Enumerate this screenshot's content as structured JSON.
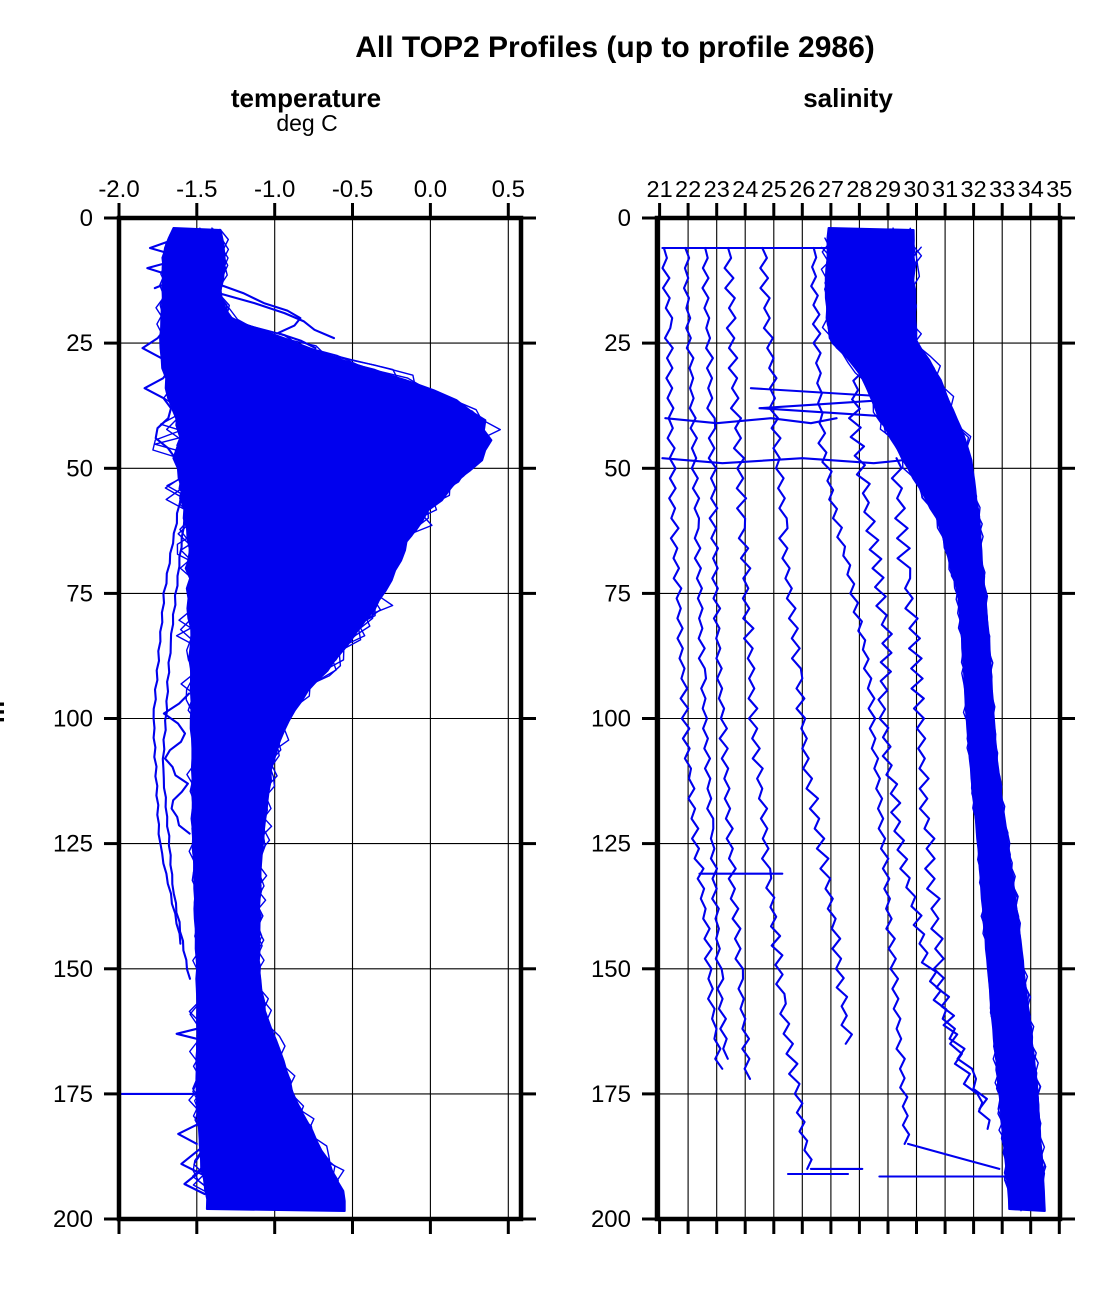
{
  "title": "All TOP2 Profiles (up to profile 2986)",
  "figure": {
    "background": "#ffffff",
    "line_color": "#0000EE",
    "axis_color": "#000000"
  },
  "chart_data": [
    {
      "type": "line",
      "title": "temperature",
      "units_label": "deg C",
      "ylabel": "m",
      "x_range": [
        -2.0,
        0.5
      ],
      "depth_range_m": [
        0,
        200
      ],
      "grid": true,
      "x_ticks": [
        -2.0,
        -1.5,
        -1.0,
        -0.5,
        0.0,
        0.5
      ],
      "x_tick_labels": [
        "-2.0",
        "-1.5",
        "-1.0",
        "-0.5",
        "0.0",
        "0.5"
      ],
      "y_ticks": [
        0,
        25,
        50,
        75,
        100,
        125,
        150,
        175,
        200
      ],
      "y_tick_labels": [
        "0",
        "25",
        "50",
        "75",
        "100",
        "125",
        "150",
        "175",
        "200"
      ],
      "description": "Many overplotted temperature profiles (deg C vs depth m); dense bundle summarized by min/max envelope, plus sparse outlier excursions",
      "series": {
        "dense_bundle": {
          "depths": [
            2,
            5,
            10,
            15,
            20,
            24,
            28,
            32,
            36,
            40,
            44,
            48,
            52,
            56,
            60,
            65,
            70,
            75,
            80,
            85,
            90,
            95,
            100,
            105,
            110,
            120,
            130,
            140,
            150,
            155,
            160,
            165,
            170,
            175,
            180,
            185,
            190,
            194,
            198
          ],
          "min": [
            -1.65,
            -1.7,
            -1.72,
            -1.72,
            -1.73,
            -1.73,
            -1.72,
            -1.7,
            -1.68,
            -1.65,
            -1.62,
            -1.64,
            -1.62,
            -1.6,
            -1.57,
            -1.56,
            -1.56,
            -1.55,
            -1.55,
            -1.54,
            -1.54,
            -1.54,
            -1.54,
            -1.53,
            -1.53,
            -1.53,
            -1.52,
            -1.51,
            -1.5,
            -1.5,
            -1.5,
            -1.5,
            -1.5,
            -1.5,
            -1.49,
            -1.48,
            -1.47,
            -1.45,
            -1.43
          ],
          "max": [
            -1.35,
            -1.33,
            -1.32,
            -1.35,
            -1.3,
            -0.95,
            -0.6,
            -0.2,
            0.15,
            0.33,
            0.38,
            0.33,
            0.2,
            0.07,
            -0.05,
            -0.15,
            -0.22,
            -0.3,
            -0.4,
            -0.52,
            -0.65,
            -0.8,
            -0.9,
            -0.97,
            -1.02,
            -1.06,
            -1.09,
            -1.1,
            -1.1,
            -1.08,
            -1.05,
            -0.98,
            -0.93,
            -0.88,
            -0.8,
            -0.72,
            -0.63,
            -0.57,
            -0.55
          ]
        },
        "outlier_profiles": [
          {
            "points": [
              [
                4,
                -1.62
              ],
              [
                6,
                -1.82
              ],
              [
                8,
                -1.6
              ],
              [
                10,
                -1.84
              ],
              [
                12,
                -1.63
              ],
              [
                14,
                -1.78
              ]
            ],
            "wiggle": 0.02
          },
          {
            "points": [
              [
                22,
                -1.7
              ],
              [
                26,
                -1.84
              ],
              [
                30,
                -1.66
              ],
              [
                34,
                -1.82
              ],
              [
                38,
                -1.65
              ],
              [
                44,
                -1.78
              ],
              [
                48,
                -1.63
              ]
            ],
            "wiggle": 0.02
          },
          {
            "points": [
              [
                55,
                -1.6
              ],
              [
                75,
                -1.71
              ],
              [
                100,
                -1.78
              ],
              [
                125,
                -1.74
              ],
              [
                145,
                -1.6
              ]
            ],
            "wiggle": 0.005
          },
          {
            "points": [
              [
                60,
                -1.58
              ],
              [
                85,
                -1.67
              ],
              [
                110,
                -1.72
              ],
              [
                135,
                -1.65
              ],
              [
                152,
                -1.55
              ]
            ],
            "wiggle": 0.005
          },
          {
            "points": [
              [
                95,
                -1.55
              ],
              [
                99,
                -1.7
              ],
              [
                103,
                -1.56
              ],
              [
                108,
                -1.72
              ],
              [
                113,
                -1.57
              ],
              [
                118,
                -1.68
              ],
              [
                123,
                -1.56
              ]
            ],
            "wiggle": 0.015
          },
          {
            "points": [
              [
                175,
                -1.48
              ],
              [
                175,
                -1.99
              ]
            ],
            "wiggle": 0
          },
          {
            "points": [
              [
                162,
                -1.5
              ],
              [
                163,
                -1.63
              ],
              [
                164,
                -1.5
              ]
            ],
            "wiggle": 0
          },
          {
            "points": [
              [
                13,
                -1.38
              ],
              [
                17,
                -1.05
              ],
              [
                20,
                -0.82
              ],
              [
                23,
                -0.97
              ],
              [
                26,
                -0.72
              ]
            ],
            "wiggle": 0.02
          },
          {
            "points": [
              [
                15,
                -1.36
              ],
              [
                19,
                -0.92
              ],
              [
                24,
                -0.64
              ]
            ],
            "wiggle": 0.02
          },
          {
            "points": [
              [
                181,
                -1.49
              ],
              [
                183,
                -1.62
              ],
              [
                185,
                -1.5
              ]
            ],
            "wiggle": 0
          },
          {
            "points": [
              [
                186,
                -1.48
              ],
              [
                189,
                -1.6
              ],
              [
                191,
                -1.47
              ]
            ],
            "wiggle": 0
          },
          {
            "points": [
              [
                190,
                -1.46
              ],
              [
                193,
                -1.58
              ],
              [
                195,
                -1.45
              ]
            ],
            "wiggle": 0
          }
        ]
      }
    },
    {
      "type": "line",
      "title": "salinity",
      "x_range": [
        21,
        35
      ],
      "depth_range_m": [
        0,
        200
      ],
      "grid": true,
      "x_ticks": [
        21,
        22,
        23,
        24,
        25,
        26,
        27,
        28,
        29,
        30,
        31,
        32,
        33,
        34,
        35
      ],
      "x_tick_labels": [
        "21",
        "22",
        "23",
        "24",
        "25",
        "26",
        "27",
        "28",
        "29",
        "30",
        "31",
        "32",
        "33",
        "34",
        "35"
      ],
      "y_ticks": [
        0,
        25,
        50,
        75,
        100,
        125,
        150,
        175,
        200
      ],
      "y_tick_labels": [
        "0",
        "25",
        "50",
        "75",
        "100",
        "125",
        "150",
        "175",
        "200"
      ],
      "description": "Many overplotted salinity profiles vs depth; dense bundle summarized by min/max envelope, plus low-salinity outlier casts",
      "series": {
        "dense_bundle": {
          "depths": [
            2,
            10,
            20,
            25,
            28,
            32,
            36,
            40,
            44,
            48,
            52,
            56,
            60,
            65,
            70,
            75,
            85,
            100,
            110,
            125,
            140,
            150,
            160,
            175,
            185,
            193,
            198
          ],
          "min": [
            26.9,
            26.85,
            26.85,
            27.0,
            27.6,
            28.1,
            28.4,
            28.7,
            29.1,
            29.5,
            29.9,
            30.3,
            30.7,
            31.0,
            31.2,
            31.45,
            31.6,
            31.75,
            31.9,
            32.15,
            32.35,
            32.5,
            32.65,
            32.9,
            33.05,
            33.2,
            33.25
          ],
          "max": [
            29.9,
            29.9,
            29.95,
            30.0,
            30.4,
            30.8,
            31.1,
            31.4,
            31.7,
            31.9,
            32.0,
            32.1,
            32.2,
            32.25,
            32.3,
            32.4,
            32.55,
            32.7,
            32.85,
            33.2,
            33.55,
            33.75,
            33.95,
            34.25,
            34.35,
            34.45,
            34.5
          ]
        },
        "outlier_profiles": [
          {
            "points": [
              [
                6,
                21.15
              ],
              [
                20,
                21.3
              ],
              [
                40,
                21.4
              ],
              [
                60,
                21.5
              ],
              [
                80,
                21.7
              ],
              [
                100,
                21.9
              ],
              [
                120,
                22.2
              ],
              [
                140,
                22.6
              ],
              [
                160,
                22.9
              ],
              [
                170,
                23.1
              ]
            ],
            "wiggle": 0.12
          },
          {
            "points": [
              [
                6,
                21.9
              ],
              [
                30,
                22.1
              ],
              [
                60,
                22.3
              ],
              [
                90,
                22.5
              ],
              [
                120,
                22.8
              ],
              [
                150,
                23.1
              ],
              [
                168,
                23.3
              ]
            ],
            "wiggle": 0.1
          },
          {
            "points": [
              [
                6,
                22.6
              ],
              [
                40,
                22.8
              ],
              [
                80,
                23.0
              ],
              [
                120,
                23.4
              ],
              [
                150,
                23.8
              ],
              [
                172,
                24.1
              ]
            ],
            "wiggle": 0.12
          },
          {
            "points": [
              [
                6,
                23.4
              ],
              [
                30,
                23.6
              ],
              [
                60,
                23.9
              ],
              [
                100,
                24.3
              ],
              [
                130,
                24.8
              ],
              [
                155,
                25.3
              ],
              [
                175,
                25.8
              ],
              [
                190,
                26.3
              ]
            ],
            "wiggle": 0.15
          },
          {
            "points": [
              [
                190,
                26.3
              ],
              [
                190,
                28.1
              ]
            ],
            "wiggle": 0
          },
          {
            "points": [
              [
                6,
                24.6
              ],
              [
                30,
                24.9
              ],
              [
                60,
                25.3
              ],
              [
                90,
                25.8
              ],
              [
                110,
                26.2
              ],
              [
                130,
                26.8
              ],
              [
                150,
                27.3
              ],
              [
                165,
                27.6
              ]
            ],
            "wiggle": 0.15
          },
          {
            "points": [
              [
                6,
                26.4
              ],
              [
                25,
                26.5
              ],
              [
                45,
                26.7
              ],
              [
                60,
                27.2
              ],
              [
                75,
                27.8
              ],
              [
                90,
                28.3
              ],
              [
                110,
                28.6
              ],
              [
                130,
                28.9
              ],
              [
                150,
                29.2
              ],
              [
                170,
                29.5
              ],
              [
                185,
                29.7
              ]
            ],
            "wiggle": 0.12
          },
          {
            "points": [
              [
                185,
                29.7
              ],
              [
                190,
                32.9
              ]
            ],
            "wiggle": 0
          },
          {
            "points": [
              [
                25,
                28.0
              ],
              [
                40,
                27.8
              ],
              [
                55,
                28.2
              ],
              [
                70,
                28.6
              ],
              [
                85,
                29.0
              ],
              [
                100,
                28.8
              ],
              [
                115,
                29.2
              ],
              [
                130,
                29.6
              ],
              [
                145,
                30.2
              ],
              [
                160,
                31.0
              ],
              [
                170,
                31.8
              ],
              [
                178,
                32.4
              ]
            ],
            "wiggle": 0.18
          },
          {
            "points": [
              [
                48,
                29.3
              ],
              [
                70,
                29.6
              ],
              [
                90,
                30.0
              ],
              [
                110,
                30.2
              ],
              [
                130,
                30.5
              ],
              [
                150,
                30.8
              ],
              [
                165,
                31.3
              ],
              [
                175,
                32.0
              ],
              [
                182,
                32.6
              ]
            ],
            "wiggle": 0.2
          },
          {
            "points": [
              [
                6,
                21.1
              ],
              [
                6,
                26.9
              ]
            ],
            "wiggle": 0
          },
          {
            "points": [
              [
                40,
                21.2
              ],
              [
                41,
                23.0
              ],
              [
                40,
                24.9
              ],
              [
                41,
                26.3
              ],
              [
                40,
                27.2
              ]
            ],
            "wiggle": 0
          },
          {
            "points": [
              [
                48,
                21.1
              ],
              [
                49,
                23.2
              ],
              [
                48,
                26.0
              ],
              [
                49,
                28.5
              ],
              [
                48,
                30.2
              ]
            ],
            "wiggle": 0
          },
          {
            "points": [
              [
                34,
                24.2
              ],
              [
                36,
                29.9
              ],
              [
                38,
                24.5
              ],
              [
                40,
                29.9
              ]
            ],
            "wiggle": 0
          },
          {
            "points": [
              [
                131,
                22.4
              ],
              [
                131,
                25.3
              ]
            ],
            "wiggle": 0
          },
          {
            "points": [
              [
                191,
                25.5
              ],
              [
                191,
                27.6
              ]
            ],
            "wiggle": 0
          },
          {
            "points": [
              [
                191.5,
                28.7
              ],
              [
                191.5,
                33.1
              ]
            ],
            "wiggle": 0
          }
        ]
      }
    }
  ]
}
